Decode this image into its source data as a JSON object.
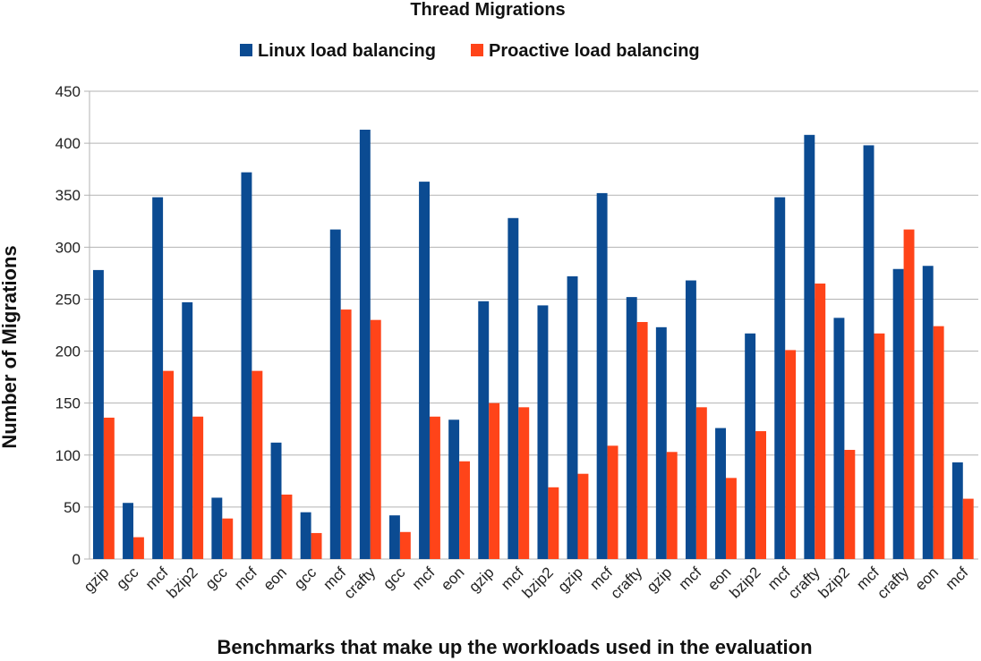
{
  "chart_data": {
    "type": "bar",
    "title": "Thread Migrations",
    "xlabel": "Benchmarks that make up the workloads used in the evaluation",
    "ylabel": "Number  of  Migrations",
    "ylim": [
      0,
      450
    ],
    "yticks": [
      0,
      50,
      100,
      150,
      200,
      250,
      300,
      350,
      400,
      450
    ],
    "grid": "horizontal",
    "legend": "top-center",
    "categories": [
      "gzip",
      "gcc",
      "mcf",
      "bzip2",
      "gcc",
      "mcf",
      "eon",
      "gcc",
      "mcf",
      "crafty",
      "gcc",
      "mcf",
      "eon",
      "gzip",
      "mcf",
      "bzip2",
      "gzip",
      "mcf",
      "crafty",
      "gzip",
      "mcf",
      "eon",
      "bzip2",
      "mcf",
      "crafty",
      "bzip2",
      "mcf",
      "crafty",
      "eon",
      "mcf"
    ],
    "series": [
      {
        "name": "Linux load balancing",
        "color": "#0b4b92",
        "values": [
          278,
          54,
          348,
          247,
          59,
          372,
          112,
          45,
          317,
          413,
          42,
          363,
          134,
          248,
          328,
          244,
          272,
          352,
          252,
          223,
          268,
          126,
          217,
          348,
          408,
          232,
          398,
          279,
          282,
          93
        ]
      },
      {
        "name": "Proactive load balancing",
        "color": "#ff4419",
        "values": [
          136,
          21,
          181,
          137,
          39,
          181,
          62,
          25,
          240,
          230,
          26,
          137,
          94,
          150,
          146,
          69,
          82,
          109,
          228,
          103,
          146,
          78,
          123,
          201,
          265,
          105,
          217,
          317,
          224,
          58
        ]
      }
    ]
  }
}
